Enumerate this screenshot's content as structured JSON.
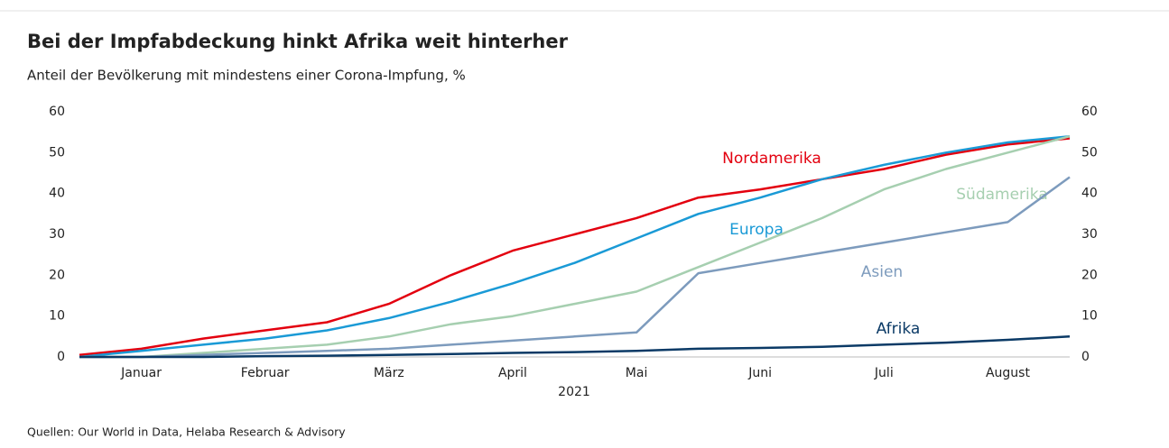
{
  "chart_data": {
    "type": "line",
    "title": "Bei der Impfabdeckung hinkt Afrika weit hinterher",
    "subtitle": "Anteil der Bevölkerung mit mindestens einer Corona-Impfung, %",
    "x_label": "2021",
    "source": "Quellen: Our World in Data, Helaba Research & Advisory",
    "categories": [
      null,
      "Januar",
      null,
      "Februar",
      null,
      "März",
      null,
      "April",
      null,
      "Mai",
      null,
      "Juni",
      null,
      "Juli",
      null,
      "August",
      null
    ],
    "series": [
      {
        "name": "Nordamerika",
        "color": "#e3000f",
        "values": [
          0.5,
          2,
          4.5,
          6.5,
          8.5,
          13,
          20,
          26,
          30,
          34,
          39,
          41,
          43.5,
          46,
          49.5,
          52,
          53.5
        ]
      },
      {
        "name": "Europa",
        "color": "#1a9ad6",
        "values": [
          0,
          1.5,
          3,
          4.5,
          6.5,
          9.5,
          13.5,
          18,
          23,
          29,
          35,
          39,
          43.5,
          47,
          50,
          52.5,
          54
        ]
      },
      {
        "name": "Südamerika",
        "color": "#a6cfb0",
        "values": [
          0,
          0,
          1,
          2,
          3,
          5,
          8,
          10,
          13,
          16,
          22,
          28,
          34,
          41,
          46,
          50,
          54
        ]
      },
      {
        "name": "Asien",
        "color": "#7d9bbd",
        "values": [
          0,
          0,
          0.5,
          1,
          1.5,
          2,
          3,
          4,
          5,
          6,
          20.5,
          23,
          25.5,
          28,
          30.5,
          33,
          44
        ]
      },
      {
        "name": "Afrika",
        "color": "#0b3a66",
        "values": [
          0,
          0,
          0,
          0.2,
          0.3,
          0.5,
          0.7,
          1,
          1.2,
          1.5,
          2,
          2.2,
          2.5,
          3,
          3.5,
          4.2,
          5
        ]
      }
    ],
    "ylim": [
      0,
      60
    ],
    "yticks": [
      0,
      10,
      20,
      30,
      40,
      50,
      60
    ],
    "y2lim": [
      0,
      60
    ],
    "y2ticks": [
      0,
      10,
      20,
      30,
      40,
      50,
      60
    ],
    "grid": false
  }
}
